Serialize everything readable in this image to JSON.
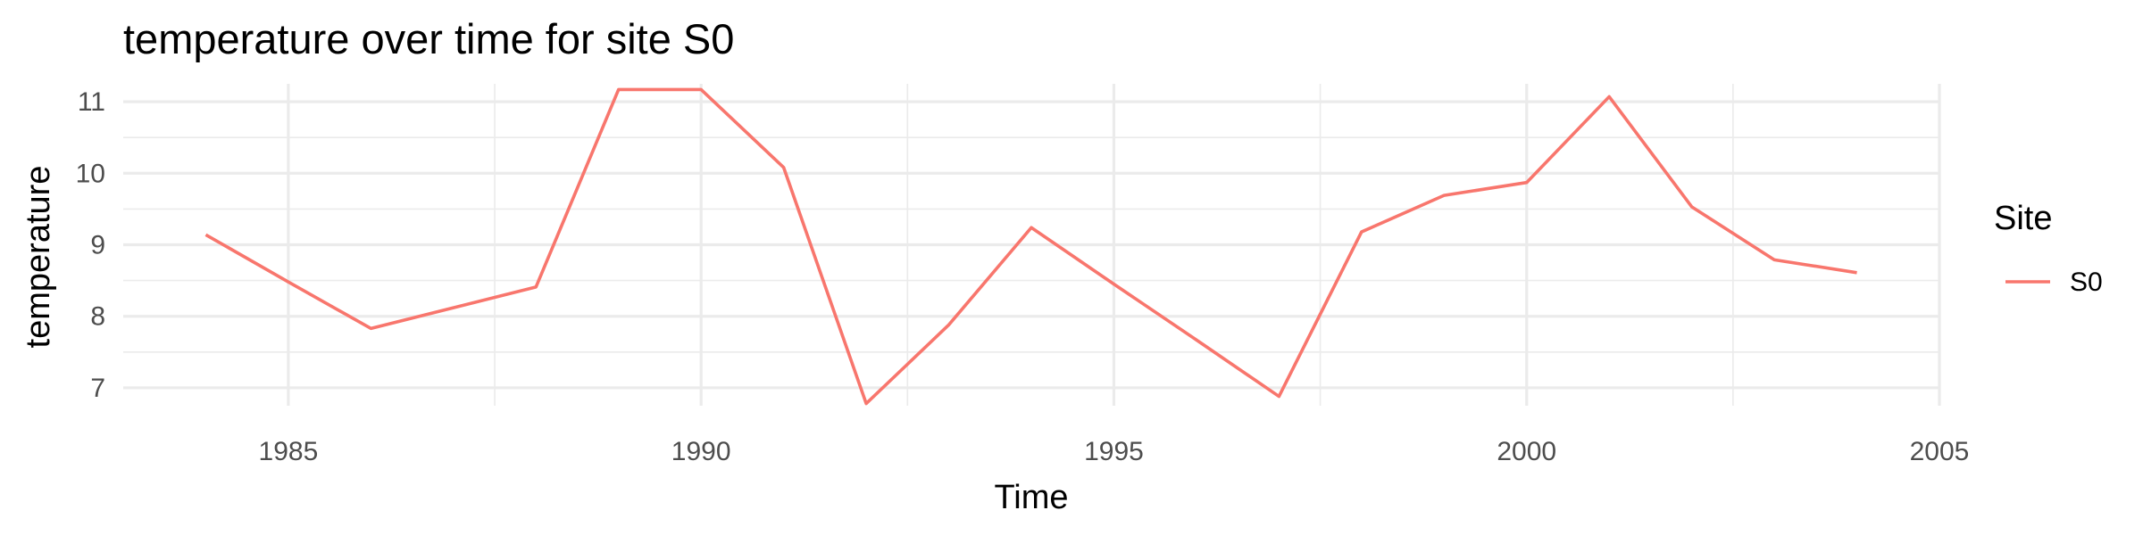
{
  "chart_data": {
    "type": "line",
    "title": "temperature over time for site S0",
    "xlabel": "Time",
    "ylabel": "temperature",
    "xlim": [
      1983,
      2005
    ],
    "ylim": [
      6.75,
      11.25
    ],
    "x_ticks": [
      1985,
      1990,
      1995,
      2000,
      2005
    ],
    "y_ticks": [
      7,
      8,
      9,
      10,
      11
    ],
    "x_tick_labels": [
      "1985",
      "1990",
      "1995",
      "2000",
      "2005"
    ],
    "y_tick_labels": [
      "7",
      "8",
      "9",
      "10",
      "11"
    ],
    "grid": true,
    "legend": {
      "title": "Site",
      "placement": "right",
      "entries": [
        "S0"
      ]
    },
    "series": [
      {
        "name": "S0",
        "color": "#F8766D",
        "x": [
          1984,
          1985,
          1986,
          1987,
          1988,
          1989,
          1990,
          1991,
          1992,
          1993,
          1994,
          1995,
          1996,
          1997,
          1998,
          1999,
          2000,
          2001,
          2002,
          2003,
          2004
        ],
        "y": [
          9.14,
          8.48,
          7.83,
          8.12,
          8.41,
          11.17,
          11.17,
          10.08,
          6.78,
          7.88,
          9.24,
          8.45,
          7.67,
          6.88,
          9.18,
          9.69,
          9.87,
          11.07,
          9.53,
          8.79,
          8.61
        ]
      }
    ]
  }
}
